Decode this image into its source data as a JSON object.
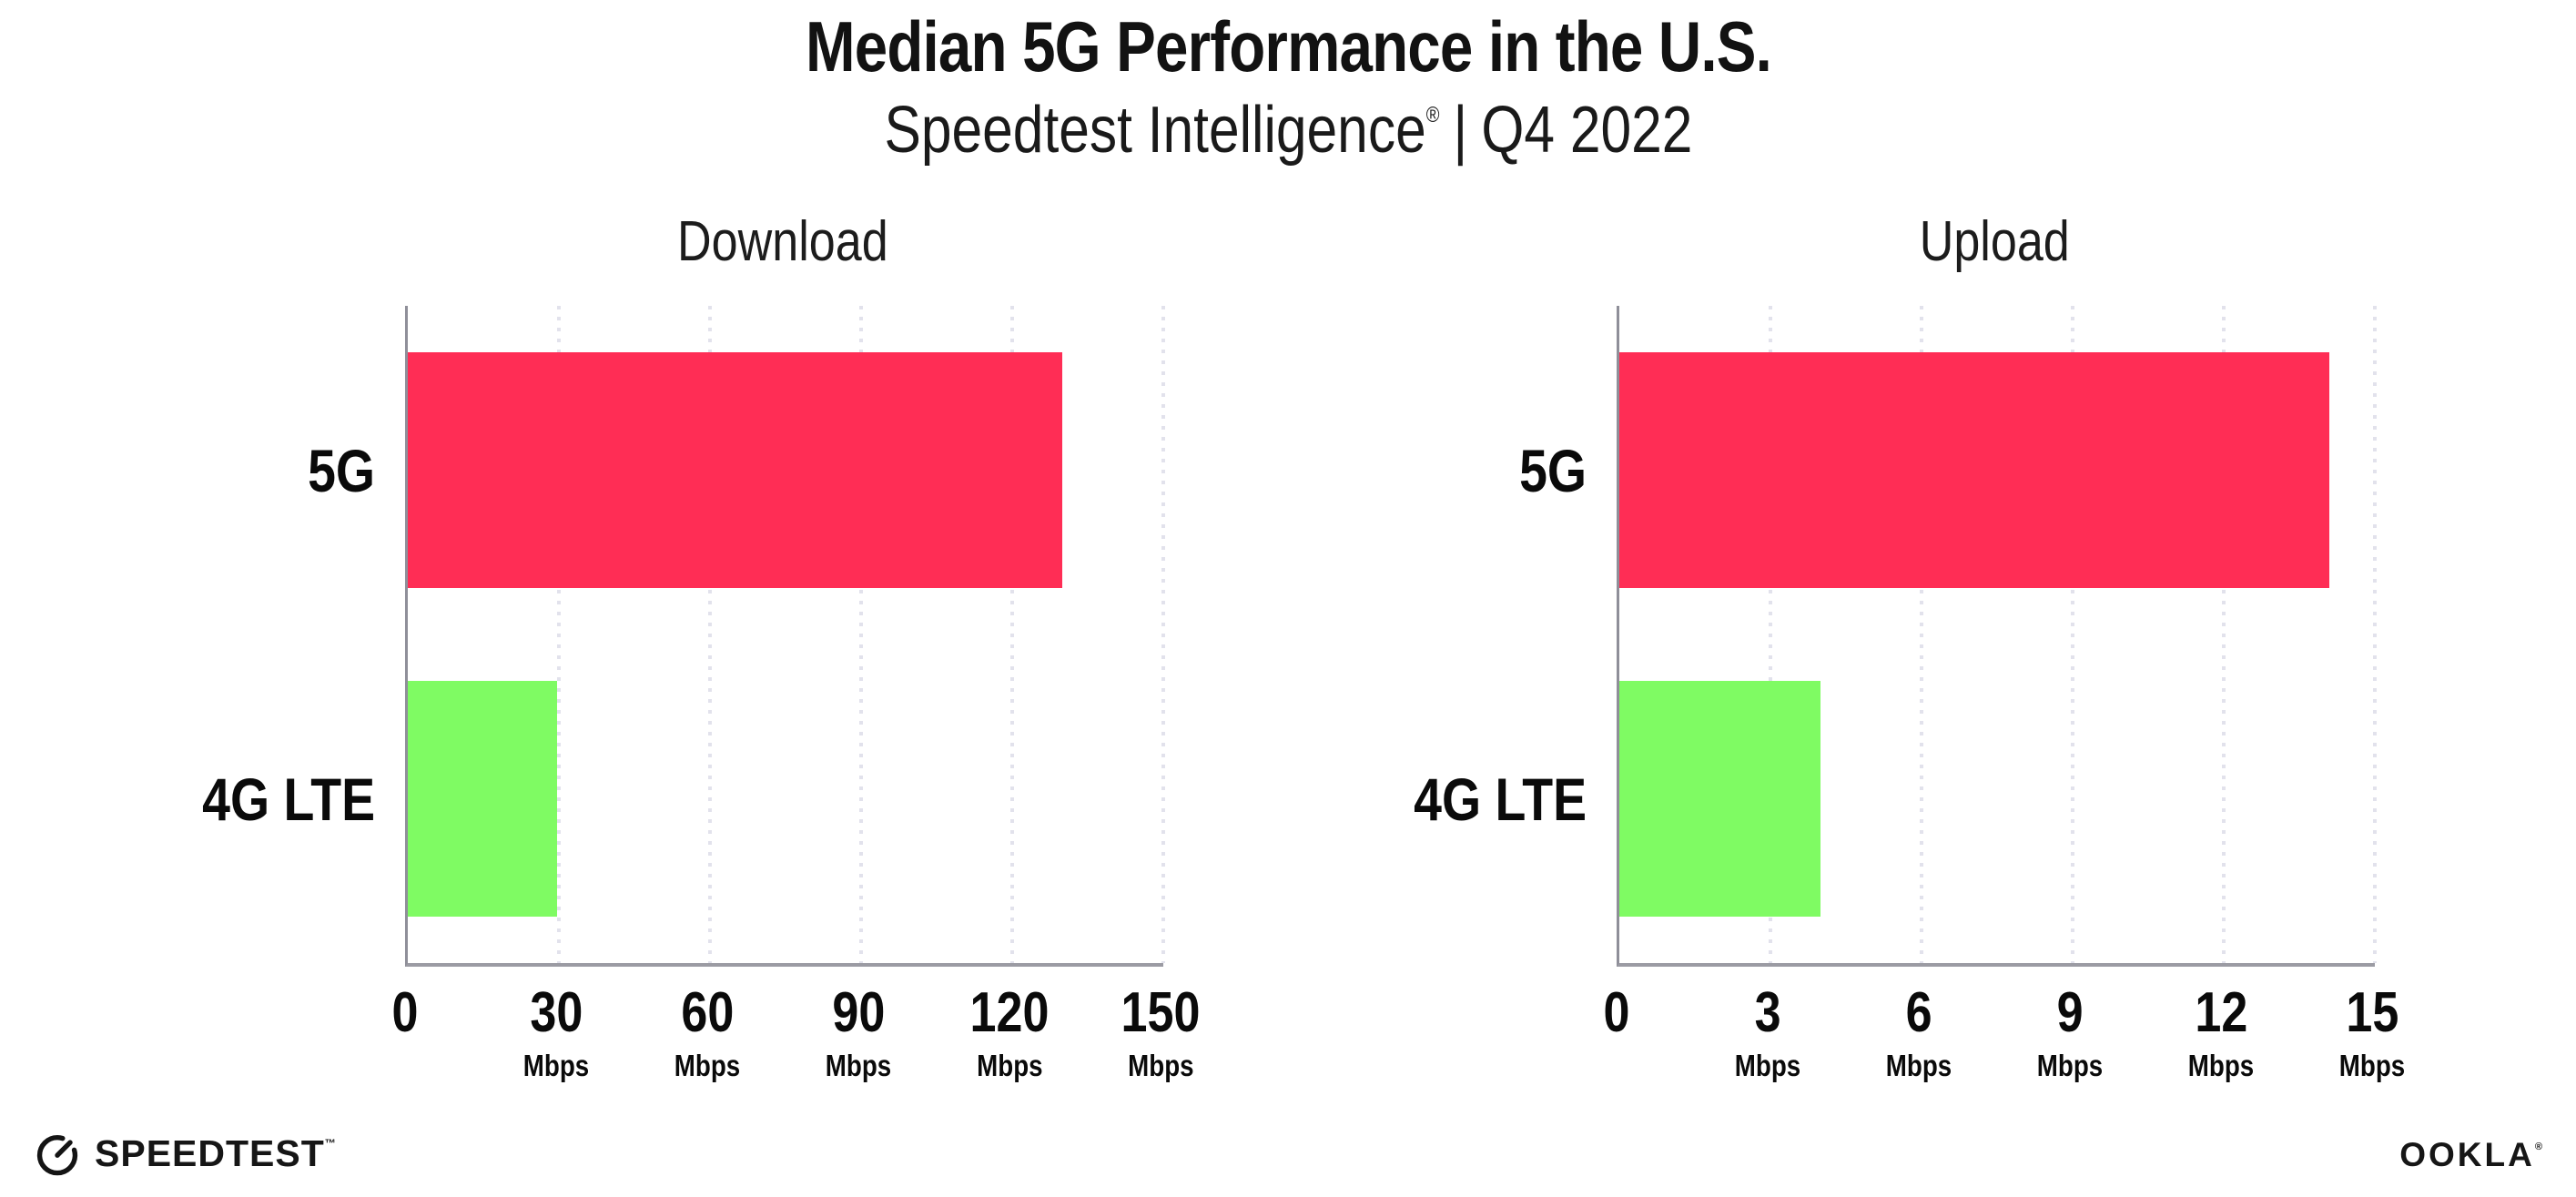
{
  "header": {
    "title": "Median 5G Performance in the U.S.",
    "subtitle": {
      "brand": "Speedtest Intelligence",
      "registered": "®",
      "separator": "|",
      "period": "Q4 2022"
    }
  },
  "chart_data": [
    {
      "type": "bar",
      "orientation": "horizontal",
      "title": "Download",
      "categories": [
        "5G",
        "4G LTE"
      ],
      "values": [
        130,
        29.7
      ],
      "unit": "Mbps",
      "xlim": [
        0,
        150
      ],
      "xticks": [
        0,
        30,
        60,
        90,
        120,
        150
      ],
      "tick_unit_label": "Mbps",
      "grid": "vertical-dotted",
      "legend": "none",
      "bar_colors": [
        "#FF2D55",
        "#7FFB63"
      ]
    },
    {
      "type": "bar",
      "orientation": "horizontal",
      "title": "Upload",
      "categories": [
        "5G",
        "4G LTE"
      ],
      "values": [
        14.1,
        4.0
      ],
      "unit": "Mbps",
      "xlim": [
        0,
        15
      ],
      "xticks": [
        0,
        3,
        6,
        9,
        12,
        15
      ],
      "tick_unit_label": "Mbps",
      "grid": "vertical-dotted",
      "legend": "none",
      "bar_colors": [
        "#FF2D55",
        "#7FFB63"
      ]
    }
  ],
  "footer": {
    "speedtest_label": "SPEEDTEST",
    "speedtest_tm": "™",
    "ookla_label": "OOKLA",
    "ookla_reg": "®"
  },
  "colors": {
    "bar_5g": "#FF2D55",
    "bar_4g_lte": "#7FFB63",
    "axis": "#9b9ba3",
    "grid_dots": "#e2e2ec",
    "text": "#0d0d0d"
  }
}
